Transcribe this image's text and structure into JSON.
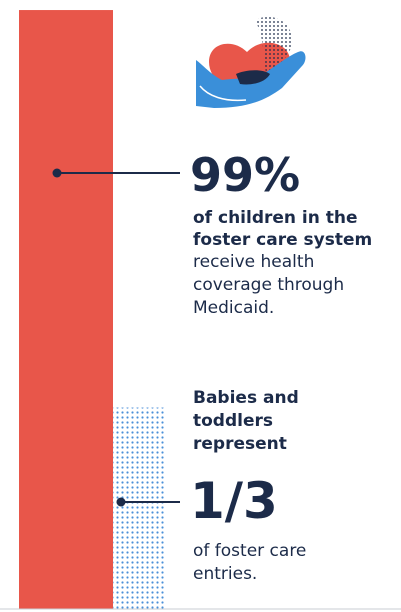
{
  "colors": {
    "bar": "#e8564a",
    "dots_red": "#e8564a",
    "dots_blue": "#4a8fd8",
    "navy": "#1c2b49",
    "heart": "#e8564a",
    "hand": "#3a8fd9"
  },
  "icon": "heart-in-hand-icon",
  "chart_data": {
    "type": "bar",
    "categories": [
      "Medicaid health coverage",
      "Foster care entries"
    ],
    "values": [
      99,
      33.3
    ],
    "ylim": [
      0,
      100
    ],
    "grid": false,
    "annotations": [
      {
        "value": "99%",
        "bold_lines": [
          "of children in the",
          "foster care system"
        ],
        "lines": [
          "receive health",
          "coverage through",
          "Medicaid."
        ]
      },
      {
        "value": "1/3",
        "bold_lines": [
          "Babies and",
          "toddlers",
          "represent"
        ],
        "lines": [
          "of foster care",
          "entries."
        ]
      }
    ]
  }
}
